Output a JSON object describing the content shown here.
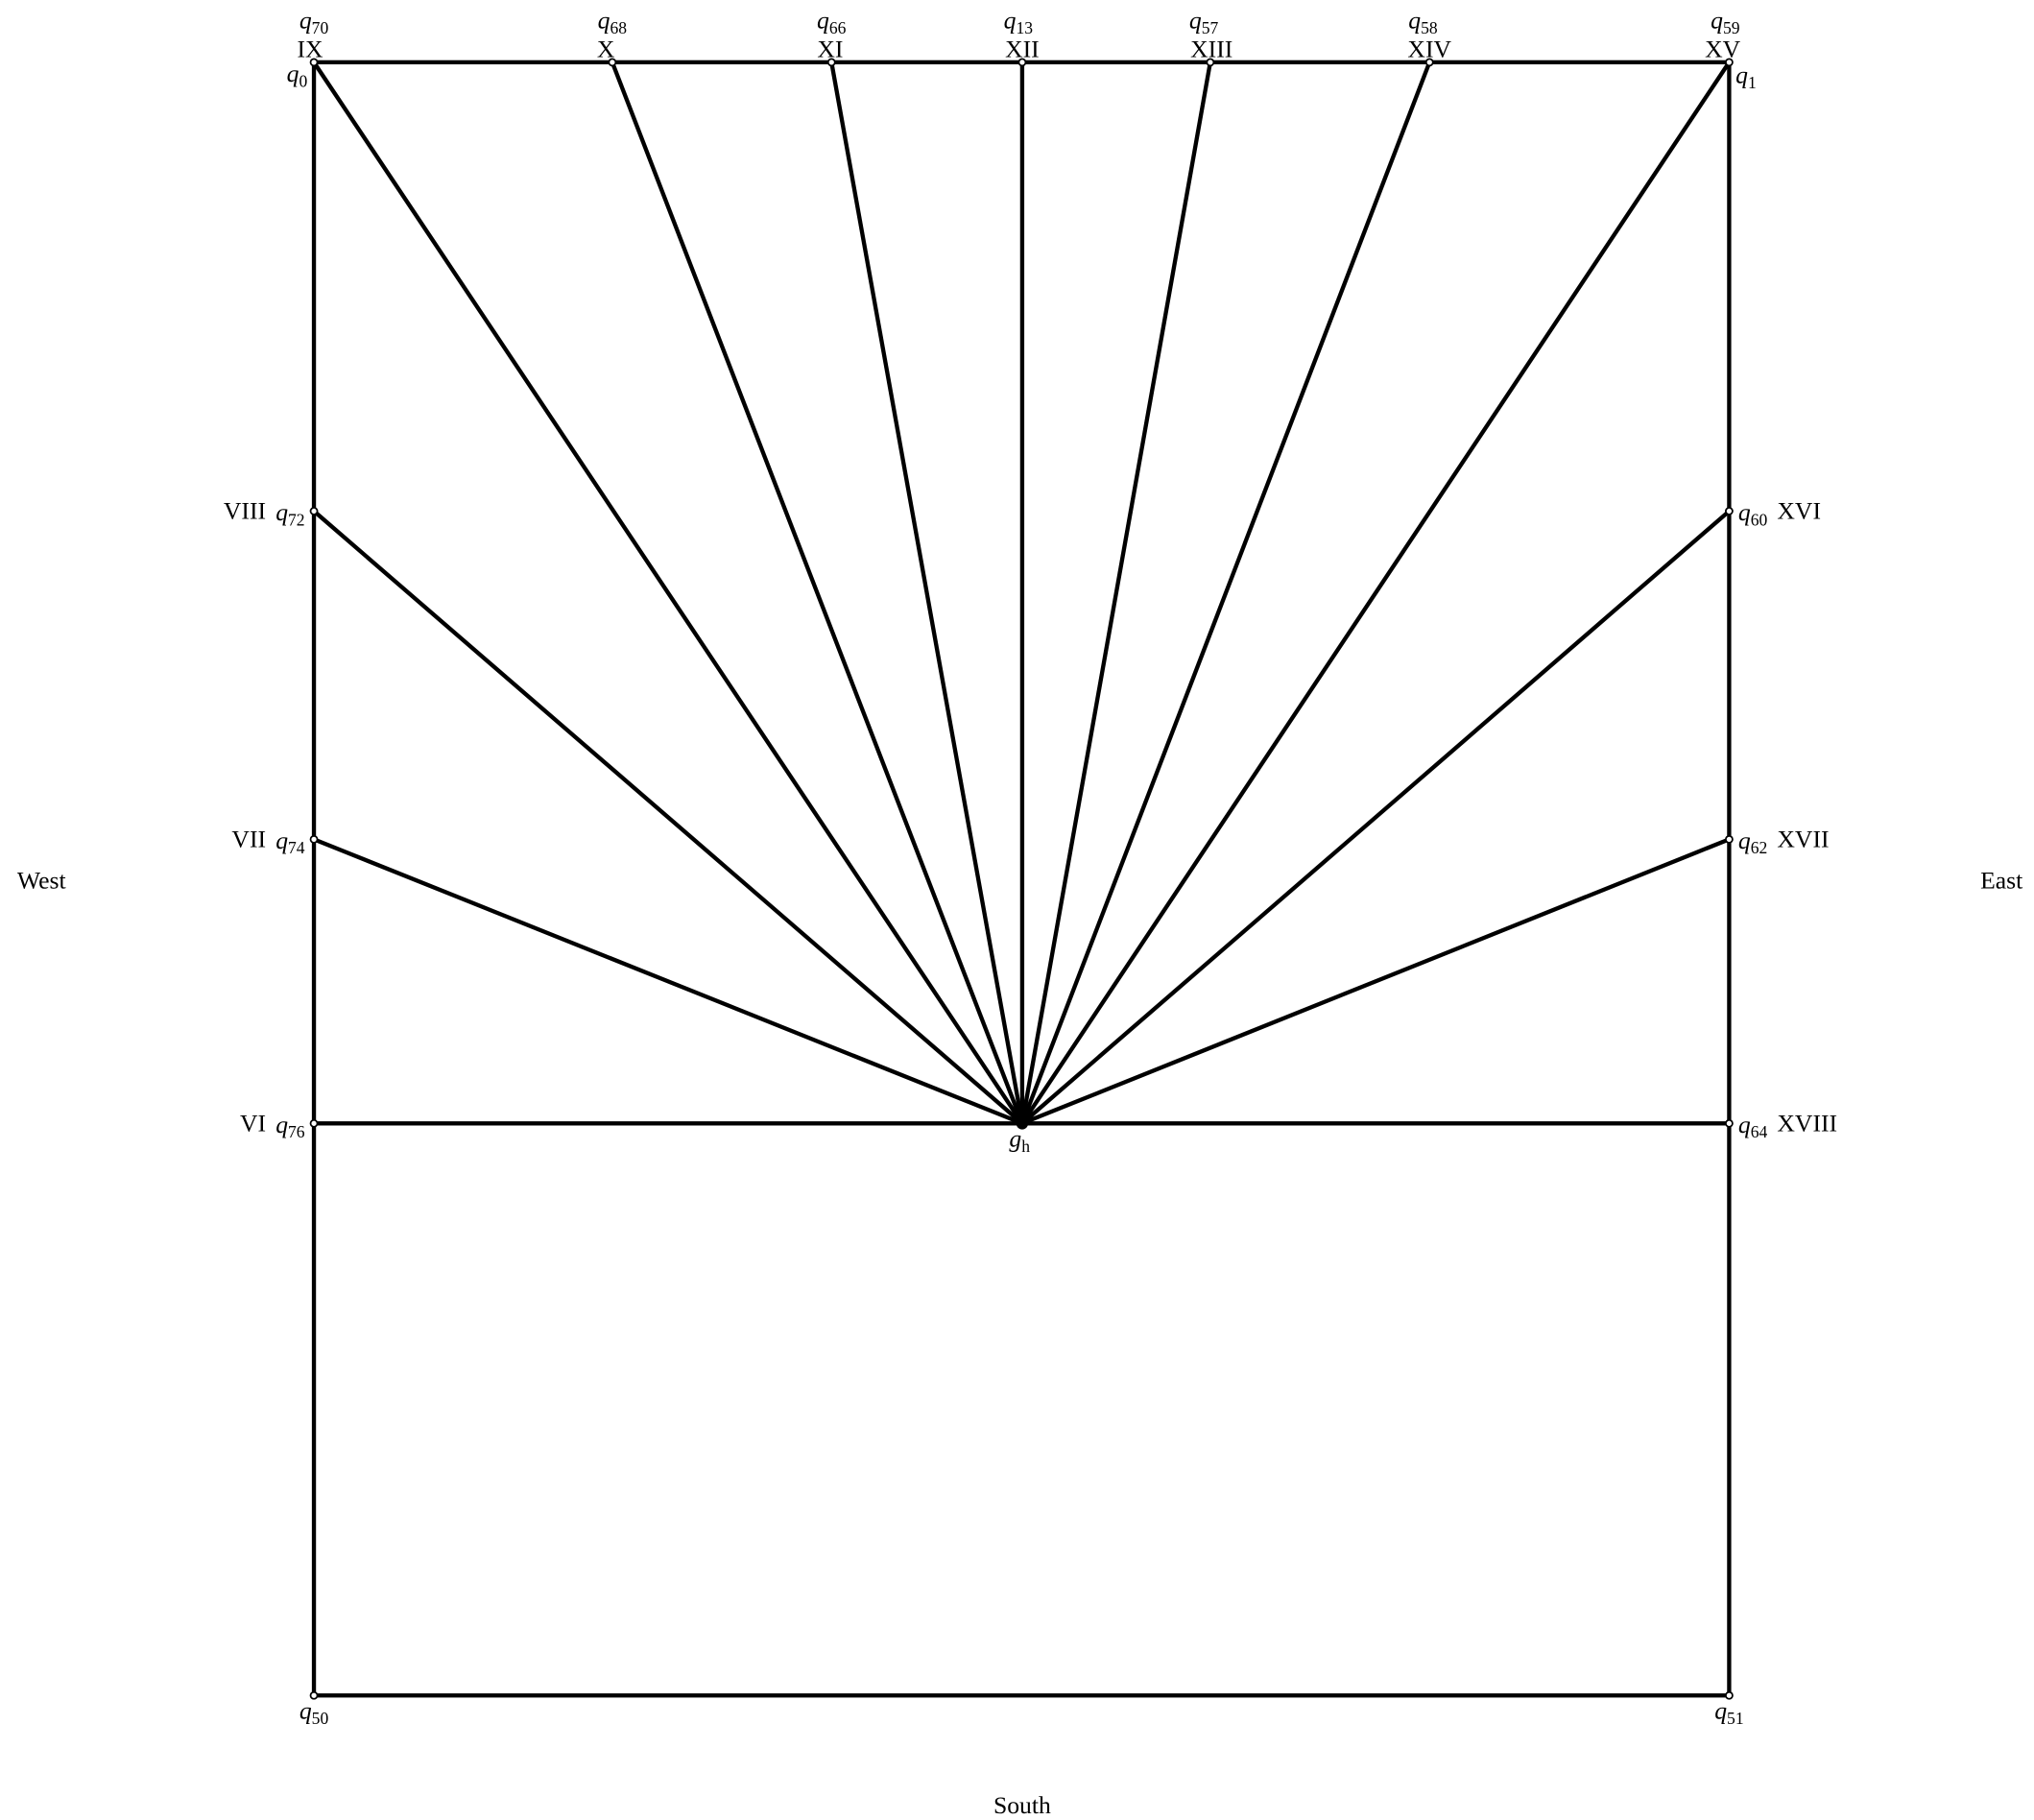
{
  "nodes": [
    {
      "base": "q",
      "sub": "0"
    },
    {
      "base": "q",
      "sub": "1"
    },
    {
      "base": "q",
      "sub": "50"
    },
    {
      "base": "q",
      "sub": "51"
    },
    {
      "base": "q",
      "sub": "70"
    },
    {
      "base": "q",
      "sub": "68"
    },
    {
      "base": "q",
      "sub": "66"
    },
    {
      "base": "q",
      "sub": "13"
    },
    {
      "base": "q",
      "sub": "57"
    },
    {
      "base": "q",
      "sub": "58"
    },
    {
      "base": "q",
      "sub": "59"
    },
    {
      "base": "q",
      "sub": "72"
    },
    {
      "base": "q",
      "sub": "74"
    },
    {
      "base": "q",
      "sub": "76"
    },
    {
      "base": "q",
      "sub": "60"
    },
    {
      "base": "q",
      "sub": "62"
    },
    {
      "base": "q",
      "sub": "64"
    },
    {
      "base": "g",
      "sub": "h"
    }
  ],
  "hours": [
    "IX",
    "X",
    "XI",
    "XII",
    "XIII",
    "XIV",
    "XV",
    "VIII",
    "VII",
    "VI",
    "XVI",
    "XVII",
    "XVIII"
  ],
  "directions": {
    "west": "West",
    "east": "East",
    "south": "South"
  }
}
